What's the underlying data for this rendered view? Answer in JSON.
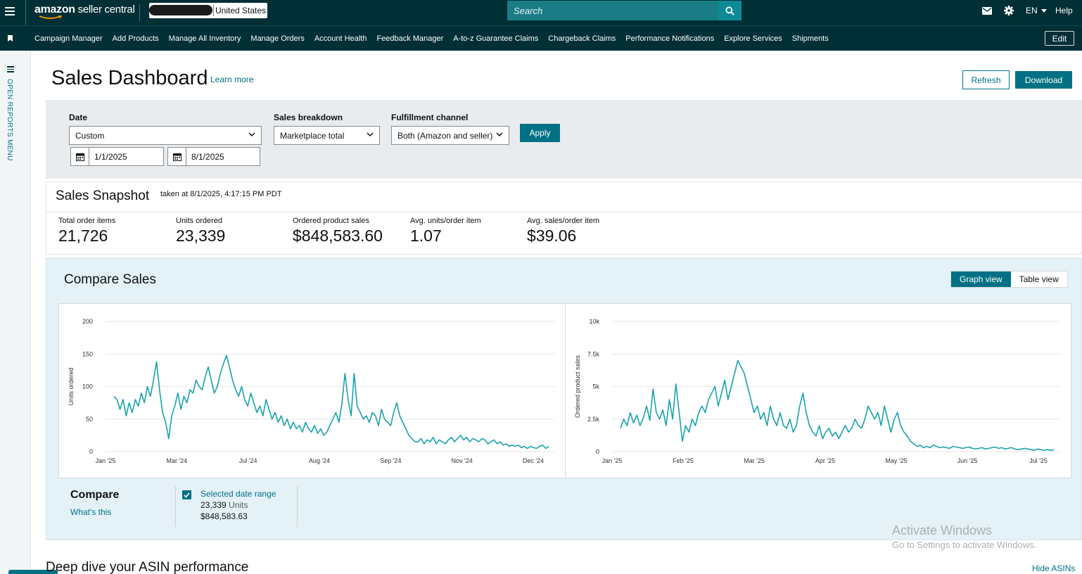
{
  "topbar": {
    "brand_amazon": "amazon",
    "brand_seller": " seller central",
    "store_country": "United States",
    "search_placeholder": "Search",
    "lang": "EN",
    "help": "Help"
  },
  "nav": {
    "items": [
      {
        "label": "Campaign Manager"
      },
      {
        "label": "Add Products"
      },
      {
        "label": "Manage All Inventory"
      },
      {
        "label": "Manage Orders"
      },
      {
        "label": "Account Health"
      },
      {
        "label": "Feedback Manager"
      },
      {
        "label": "A-to-z Guarantee Claims"
      },
      {
        "label": "Chargeback Claims"
      },
      {
        "label": "Performance Notifications"
      },
      {
        "label": "Explore Services"
      },
      {
        "label": "Shipments"
      }
    ],
    "edit": "Edit"
  },
  "left_rail": {
    "label": "OPEN REPORTS MENU"
  },
  "header": {
    "title": "Sales Dashboard",
    "learn_more": "Learn more",
    "refresh": "Refresh",
    "download": "Download"
  },
  "filters": {
    "date_label": "Date",
    "date_value": "Custom",
    "start_date": "1/1/2025",
    "end_date": "8/1/2025",
    "breakdown_label": "Sales breakdown",
    "breakdown_value": "Marketplace total",
    "channel_label": "Fulfillment channel",
    "channel_value": "Both (Amazon and seller)",
    "apply": "Apply"
  },
  "snapshot": {
    "title": "Sales Snapshot",
    "taken": "taken at 8/1/2025, 4:17:15 PM PDT",
    "metrics": [
      {
        "label": "Total order items",
        "value": "21,726"
      },
      {
        "label": "Units ordered",
        "value": "23,339"
      },
      {
        "label": "Ordered product sales",
        "value": "$848,583.60"
      },
      {
        "label": "Avg. units/order item",
        "value": "1.07"
      },
      {
        "label": "Avg. sales/order item",
        "value": "$39.06"
      }
    ]
  },
  "compare_sales": {
    "title": "Compare Sales",
    "graph_view": "Graph view",
    "table_view": "Table view",
    "compare_label": "Compare",
    "whats_this": "What's this",
    "selected_label": "Selected date range",
    "selected_units": "23,339",
    "units_word": " Units",
    "selected_sales": "$848,583.63"
  },
  "chart_data": [
    {
      "type": "line",
      "ylabel": "Units ordered",
      "ylim": [
        0,
        200
      ],
      "yticks": [
        "0",
        "50",
        "100",
        "150",
        "200"
      ],
      "xticks": [
        "Jan '25",
        "Mar '24",
        "Jul '24",
        "Aug '24",
        "Sep '24",
        "Nov '24",
        "Dec '24"
      ],
      "series_color": "#1aa3ad",
      "values": [
        85,
        80,
        65,
        80,
        55,
        75,
        60,
        80,
        70,
        90,
        75,
        100,
        85,
        110,
        138,
        95,
        60,
        45,
        20,
        55,
        70,
        90,
        65,
        85,
        75,
        95,
        90,
        110,
        100,
        95,
        115,
        130,
        110,
        90,
        100,
        120,
        135,
        148,
        130,
        110,
        95,
        85,
        100,
        80,
        70,
        90,
        75,
        60,
        70,
        55,
        80,
        65,
        50,
        60,
        45,
        55,
        40,
        50,
        35,
        45,
        35,
        40,
        30,
        45,
        35,
        30,
        40,
        28,
        35,
        25,
        30,
        40,
        50,
        60,
        45,
        75,
        120,
        80,
        55,
        120,
        70,
        60,
        50,
        55,
        45,
        60,
        55,
        40,
        65,
        50,
        45,
        40,
        60,
        75,
        55,
        45,
        35,
        25,
        20,
        15,
        15,
        20,
        12,
        18,
        15,
        22,
        12,
        18,
        15,
        12,
        18,
        22,
        15,
        20,
        25,
        18,
        22,
        15,
        20,
        18,
        15,
        20,
        18,
        12,
        15,
        18,
        12,
        15,
        10,
        12,
        8,
        10,
        8,
        10,
        6,
        8,
        5,
        8,
        6,
        5,
        8,
        10,
        5,
        8
      ]
    },
    {
      "type": "line",
      "ylabel": "Ordered product sales",
      "ylim": [
        0,
        10000
      ],
      "yticks": [
        "0",
        "2.5k",
        "5k",
        "7.5k",
        "10k"
      ],
      "xticks": [
        "Jan '25",
        "Feb '25",
        "Mar '25",
        "Apr '25",
        "May '25",
        "Jun '25",
        "Jul '25"
      ],
      "series_color": "#1aa3ad",
      "values": [
        1800,
        2500,
        2000,
        3000,
        2200,
        2800,
        2000,
        2600,
        3500,
        2400,
        4800,
        3000,
        2500,
        3200,
        2000,
        4000,
        2500,
        5200,
        3000,
        800,
        2000,
        1500,
        2500,
        2000,
        3000,
        3500,
        3000,
        4000,
        4500,
        5000,
        3500,
        4500,
        5500,
        4000,
        5000,
        6000,
        7000,
        6500,
        6000,
        5000,
        4000,
        3000,
        3500,
        2500,
        3000,
        2000,
        3500,
        2500,
        2000,
        3000,
        2000,
        1800,
        2500,
        1500,
        2000,
        3500,
        4500,
        3000,
        2000,
        1500,
        1200,
        2000,
        1000,
        1500,
        1800,
        1200,
        1500,
        1000,
        1500,
        2000,
        1500,
        1800,
        2500,
        2000,
        1800,
        2500,
        3500,
        3000,
        2500,
        3000,
        2000,
        3500,
        2500,
        1500,
        2500,
        3000,
        2000,
        1500,
        1200,
        800,
        600,
        400,
        500,
        300,
        400,
        300,
        500,
        400,
        300,
        350,
        300,
        250,
        400,
        350,
        300,
        250,
        300,
        350,
        250,
        200,
        250,
        300,
        200,
        250,
        300,
        350,
        250,
        300,
        200,
        250,
        300,
        200,
        150,
        200,
        250,
        200,
        150,
        100,
        200,
        150,
        100,
        150,
        100,
        150
      ]
    }
  ],
  "watermark": {
    "line1": "Activate Windows",
    "line2": "Go to Settings to activate Windows."
  },
  "footer": {
    "deep_dive": "Deep dive your ASIN performance",
    "hide_asins": "Hide ASINs"
  }
}
